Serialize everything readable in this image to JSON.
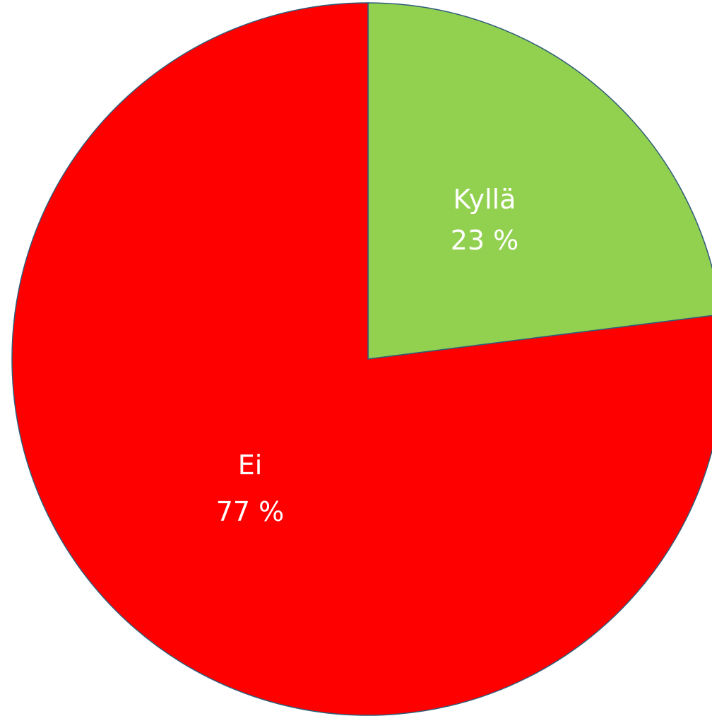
{
  "chart_data": {
    "type": "pie",
    "title": "",
    "legend": "none",
    "slices": [
      {
        "label": "Kyllä",
        "value": 23,
        "value_label": "23 %",
        "color": "#92d050"
      },
      {
        "label": "Ei",
        "value": 77,
        "value_label": "77 %",
        "color": "#ff0000"
      }
    ]
  }
}
